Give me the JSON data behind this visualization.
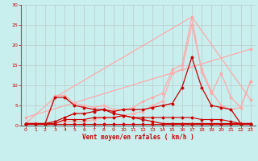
{
  "title": "",
  "xlabel": "Vent moyen/en rafales ( km/h )",
  "background_color": "#c8eeee",
  "grid_color": "#b0b0b0",
  "xlim": [
    -0.5,
    23.5
  ],
  "ylim": [
    0,
    30
  ],
  "yticks": [
    0,
    5,
    10,
    15,
    20,
    25,
    30
  ],
  "xticks": [
    0,
    1,
    2,
    3,
    4,
    5,
    6,
    7,
    8,
    9,
    10,
    11,
    12,
    13,
    14,
    15,
    16,
    17,
    18,
    19,
    20,
    21,
    22,
    23
  ],
  "lines": [
    {
      "x": [
        0,
        23
      ],
      "y": [
        2,
        19
      ],
      "color": "#ffaaaa",
      "lw": 0.9,
      "marker": "D",
      "ms": 1.5
    },
    {
      "x": [
        0,
        3,
        17,
        23
      ],
      "y": [
        0.5,
        7,
        27,
        6.5
      ],
      "color": "#ffaaaa",
      "lw": 0.9,
      "marker": "D",
      "ms": 1.5
    },
    {
      "x": [
        0,
        1,
        2,
        3,
        4,
        5,
        6,
        7,
        8,
        9,
        10,
        11,
        12,
        13,
        14,
        15,
        16,
        17,
        18,
        19,
        20,
        21,
        22,
        23
      ],
      "y": [
        0.5,
        0.5,
        0.5,
        7.5,
        7.5,
        5.5,
        5,
        4.5,
        5,
        4,
        4,
        4.5,
        6,
        7,
        8,
        14,
        15,
        27,
        13.5,
        8,
        13,
        7,
        4.5,
        11
      ],
      "color": "#ffaaaa",
      "lw": 0.9,
      "marker": "D",
      "ms": 1.5
    },
    {
      "x": [
        0,
        1,
        2,
        3,
        4,
        5,
        6,
        7,
        8,
        9,
        10,
        11,
        12,
        13,
        14,
        15,
        16,
        17,
        18,
        19,
        20,
        21,
        22,
        23
      ],
      "y": [
        0.5,
        0.5,
        0.5,
        0.5,
        1,
        1,
        1,
        1.5,
        2,
        2,
        2.5,
        3,
        3.5,
        5,
        6,
        13,
        14,
        25,
        14,
        8.5,
        5,
        4,
        4.5,
        11
      ],
      "color": "#ffaaaa",
      "lw": 0.9,
      "marker": "D",
      "ms": 1.5
    },
    {
      "x": [
        0,
        1,
        2,
        3,
        4,
        5,
        6,
        7,
        8,
        9,
        10,
        11,
        12,
        13,
        14,
        15,
        16,
        17,
        18,
        19,
        20,
        21,
        22,
        23
      ],
      "y": [
        0.5,
        0.5,
        0.5,
        0.5,
        0.5,
        0.5,
        0.5,
        0.5,
        0.5,
        0.5,
        0.5,
        0.5,
        0.5,
        0.5,
        0.5,
        0.5,
        0.5,
        0.5,
        0.5,
        0.5,
        0.5,
        0.5,
        0.5,
        0.5
      ],
      "color": "#cc0000",
      "lw": 0.8,
      "marker": "D",
      "ms": 1.5
    },
    {
      "x": [
        0,
        1,
        2,
        3,
        4,
        5,
        6,
        7,
        8,
        9,
        10,
        11,
        12,
        13,
        14,
        15,
        16,
        17,
        18,
        19,
        20,
        21,
        22,
        23
      ],
      "y": [
        0.5,
        0.5,
        0.5,
        0.5,
        1.5,
        1.5,
        1.5,
        2,
        2,
        2,
        2.5,
        2,
        2,
        2,
        2,
        2,
        2,
        2,
        1.5,
        1.5,
        1.5,
        1,
        0.5,
        0.5
      ],
      "color": "#cc0000",
      "lw": 0.8,
      "marker": "D",
      "ms": 1.5
    },
    {
      "x": [
        0,
        1,
        2,
        3,
        4,
        5,
        6,
        7,
        8,
        9,
        10,
        11,
        12,
        13,
        14,
        15,
        16,
        17,
        18,
        19,
        20,
        21,
        22,
        23
      ],
      "y": [
        0.5,
        0.5,
        0.5,
        1,
        2,
        3,
        3,
        3.5,
        4,
        3.5,
        4,
        4,
        4,
        4.5,
        5,
        5.5,
        9.5,
        17,
        9.5,
        5,
        4.5,
        4,
        0.5,
        0.5
      ],
      "color": "#cc0000",
      "lw": 0.9,
      "marker": "D",
      "ms": 1.5
    },
    {
      "x": [
        0,
        1,
        2,
        3,
        4,
        5,
        6,
        7,
        8,
        9,
        10,
        11,
        12,
        13,
        14,
        15,
        16,
        17,
        18,
        19,
        20,
        21,
        22,
        23
      ],
      "y": [
        0.5,
        0.5,
        0.5,
        7,
        7,
        5,
        4.5,
        4,
        4,
        3,
        2.5,
        2,
        1.5,
        1,
        0.5,
        0.5,
        0.5,
        0.5,
        0.5,
        0.5,
        0.5,
        0.5,
        0.5,
        0.5
      ],
      "color": "#cc0000",
      "lw": 0.9,
      "marker": "D",
      "ms": 1.5
    }
  ]
}
